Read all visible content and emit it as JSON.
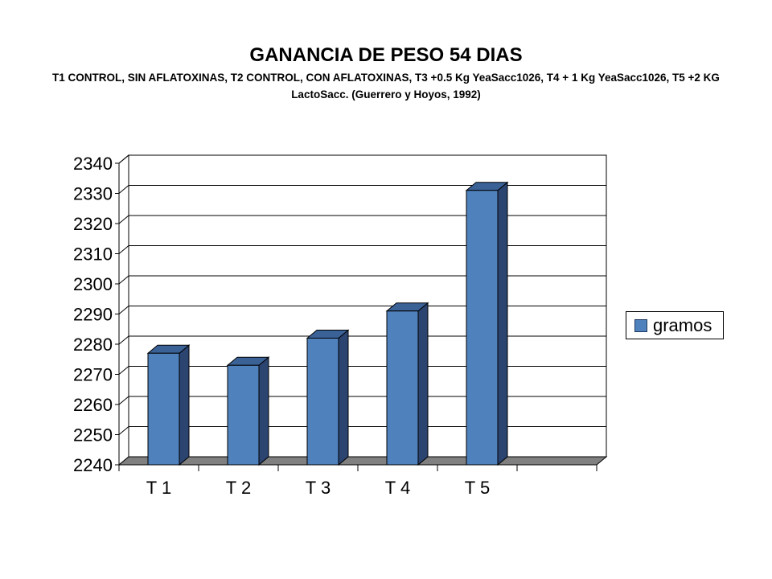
{
  "chart_data": {
    "type": "bar",
    "title": "GANANCIA DE PESO 54 DIAS",
    "subtitle": "T1 CONTROL, SIN AFLATOXINAS, T2 CONTROL, CON AFLATOXINAS, T3 +0.5 Kg YeaSacc1026, T4 + 1 Kg YeaSacc1026, T5 +2 KG LactoSacc. (Guerrero y Hoyos, 1992)",
    "categories": [
      "T 1",
      "T 2",
      "T 3",
      "T 4",
      "T 5"
    ],
    "series": [
      {
        "name": "gramos",
        "values": [
          2277,
          2273,
          2282,
          2291,
          2331
        ]
      }
    ],
    "ylim": [
      2240,
      2340
    ],
    "yticks": [
      2240,
      2250,
      2260,
      2270,
      2280,
      2290,
      2300,
      2310,
      2320,
      2330,
      2340
    ],
    "grid": true,
    "legend": "right",
    "xlabel": "",
    "ylabel": "",
    "colors": {
      "bar_front": "#4f81bd",
      "bar_side": "#2b4470",
      "bar_top": "#3a6297",
      "floor": "#808080",
      "edge": "#000000"
    }
  }
}
